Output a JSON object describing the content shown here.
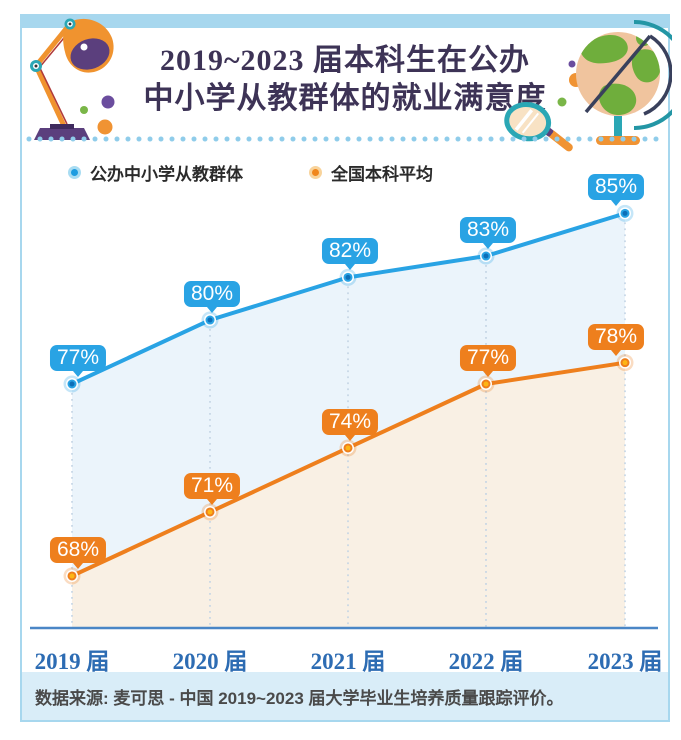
{
  "header": {
    "title_line1": "2019~2023 届本科生在公办",
    "title_line2": "中小学从教群体的就业满意度"
  },
  "footer": {
    "source": "数据来源: 麦可思 - 中国 2019~2023 届大学毕业生培养质量跟踪评价。"
  },
  "colors": {
    "frame": "#a7d7ee",
    "top_band": "#a7d7ee",
    "footer_band": "#d9edf8",
    "axis": "#4a86c6",
    "x_label": "#2d6cb3",
    "title": "#3d3356",
    "series1": "#29a3e4",
    "series2": "#ee7f1d"
  },
  "chart_data": {
    "type": "line",
    "title": "2019~2023 届本科生在公办中小学从教群体的就业满意度",
    "categories": [
      "2019 届",
      "2020 届",
      "2021 届",
      "2022 届",
      "2023 届"
    ],
    "series": [
      {
        "name": "公办中小学从教群体",
        "values": [
          77,
          80,
          82,
          83,
          85
        ],
        "labels": [
          "77%",
          "80%",
          "82%",
          "83%",
          "85%"
        ],
        "color": "#29a3e4",
        "area_color": "#ebf4fb",
        "marker_core": "#0d6fb8"
      },
      {
        "name": "全国本科平均",
        "values": [
          68,
          71,
          74,
          77,
          78
        ],
        "labels": [
          "68%",
          "71%",
          "74%",
          "77%",
          "78%"
        ],
        "color": "#ee7f1d",
        "area_color": "#f9f0e4",
        "marker_core": "#fdb515"
      }
    ],
    "xlabel": "",
    "ylabel": "",
    "unit": "%",
    "ylim": [
      65.5,
      88.5
    ],
    "grid": false,
    "legend_position": "top",
    "value_labels_shown": true
  }
}
